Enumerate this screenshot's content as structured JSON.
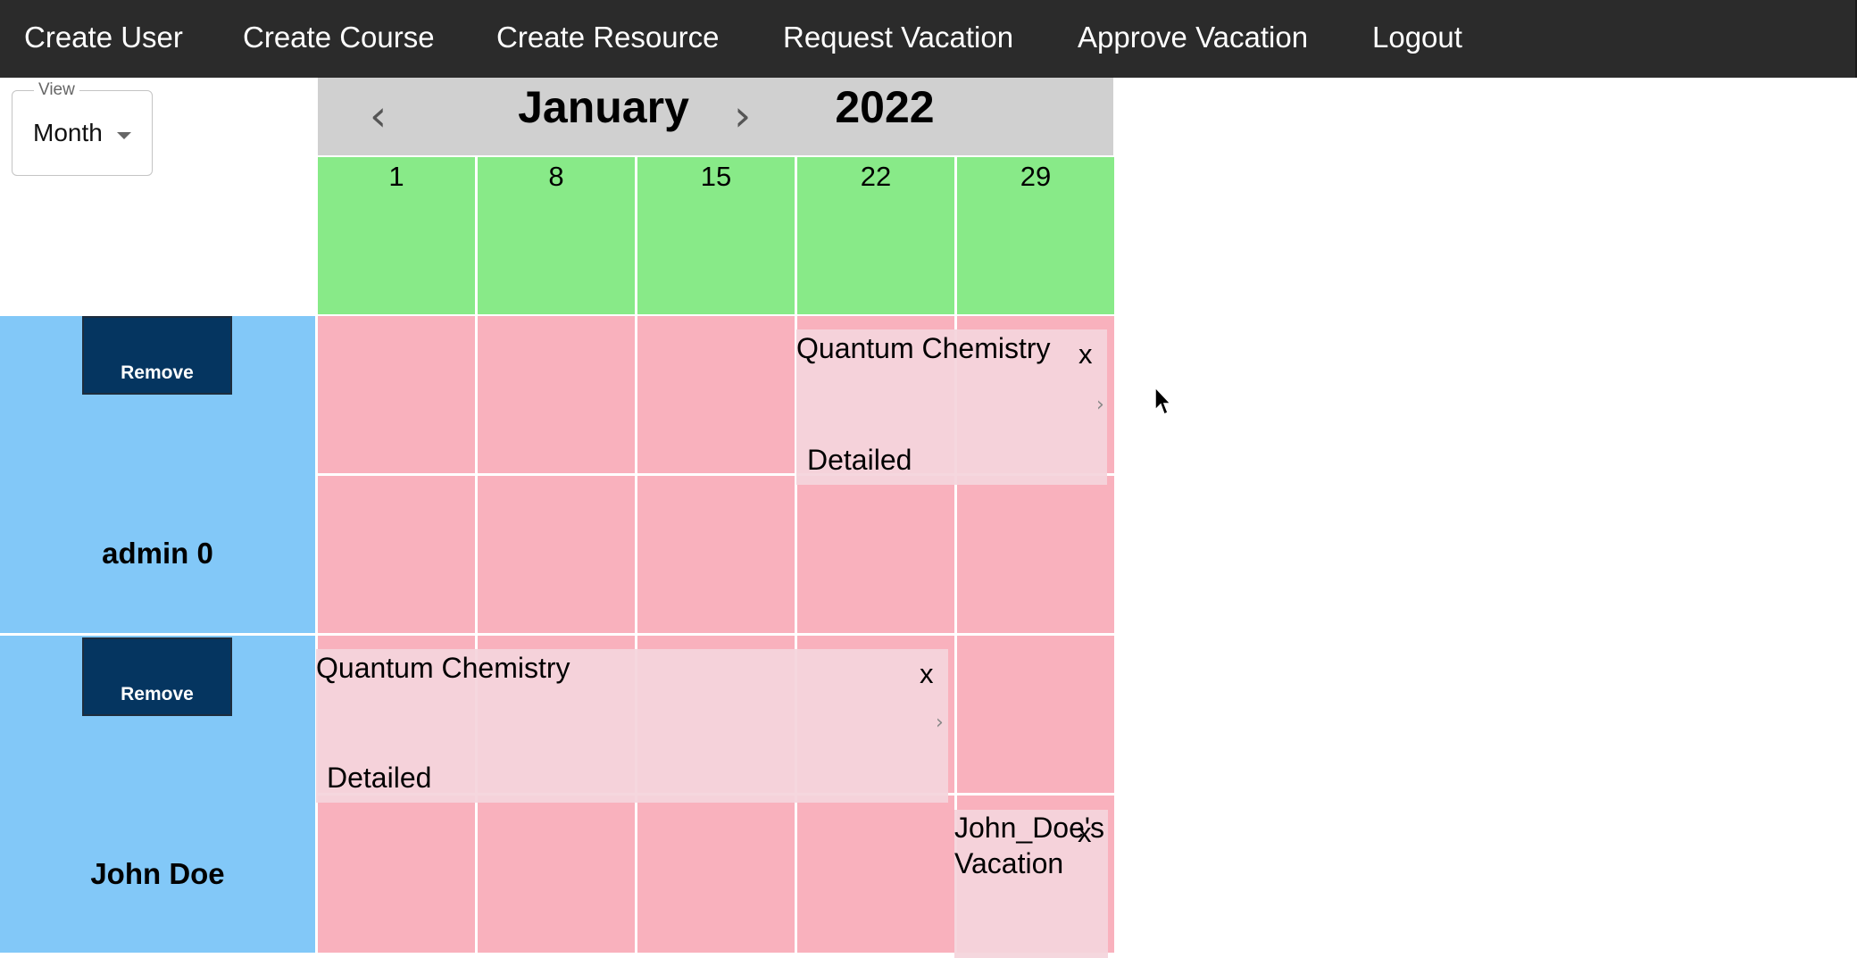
{
  "nav": {
    "items": [
      "Create User",
      "Create Course",
      "Create Resource",
      "Request Vacation",
      "Approve Vacation",
      "Logout"
    ]
  },
  "view": {
    "legend": "View",
    "selected": "Month"
  },
  "calendar": {
    "prev_icon": "chevron-left-icon",
    "next_icon": "chevron-right-icon",
    "month": "January",
    "year": "2022",
    "weeks": [
      "1",
      "8",
      "15",
      "22",
      "29"
    ]
  },
  "users": [
    {
      "remove_label": "Remove",
      "name": "admin 0",
      "events": [
        {
          "title": "Quantum Chemistry",
          "subtitle": "Detailed",
          "close": "x"
        }
      ]
    },
    {
      "remove_label": "Remove",
      "name": "John Doe",
      "events": [
        {
          "title": "Quantum Chemistry",
          "subtitle": "Detailed",
          "close": "x"
        },
        {
          "title": "John_Doe's Vacation",
          "close": "x"
        }
      ]
    }
  ],
  "colors": {
    "navbar": "#2b2b2b",
    "header": "#d0d0d0",
    "weeks": "#88ea88",
    "cells": "#f9b1bd",
    "user_panel": "#82c8f8",
    "remove_button": "#053560",
    "event": "#f4d4db"
  }
}
